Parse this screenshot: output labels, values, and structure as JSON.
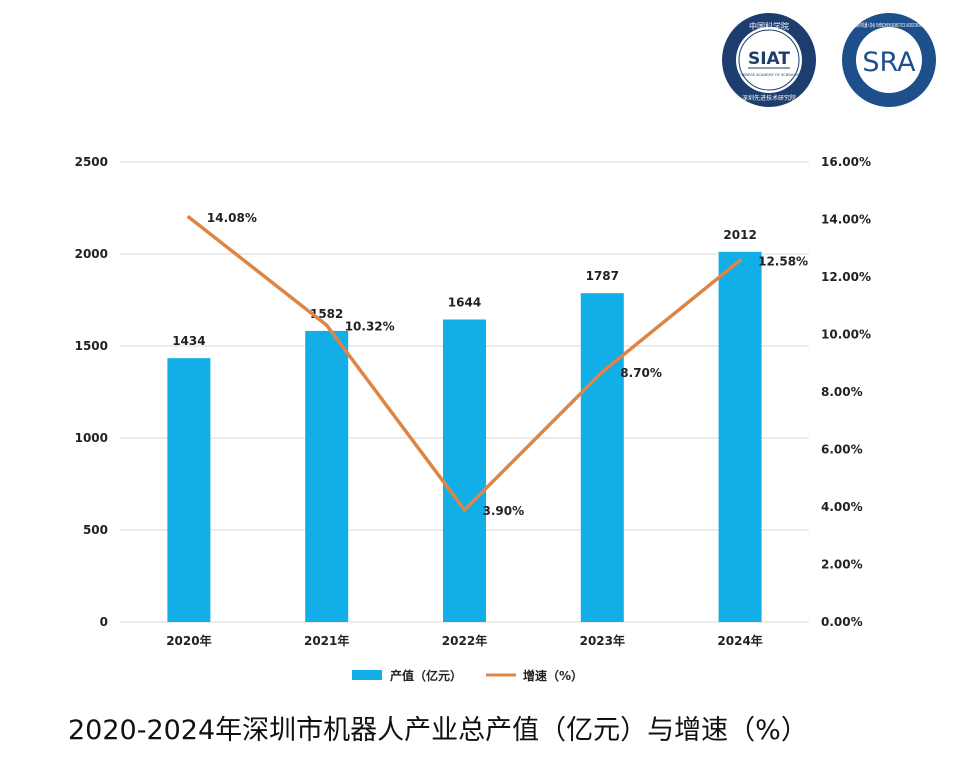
{
  "logos": {
    "siat": {
      "text": "SIAT",
      "ring_top": "中国科学院",
      "sub": "CHINESE ACADEMY OF SCIENCES",
      "ring_bottom": "深圳先进技术研究院"
    },
    "sra": {
      "text": "SRA",
      "ring": "深圳市机器人协会 SHENZHEN ROBOTICS ASSOCIATION"
    }
  },
  "chart_data": {
    "type": "bar+line",
    "categories": [
      "2020年",
      "2021年",
      "2022年",
      "2023年",
      "2024年"
    ],
    "series": [
      {
        "name": "产值（亿元）",
        "type": "bar",
        "axis": "left",
        "values": [
          1434,
          1582,
          1644,
          1787,
          2012
        ],
        "labels": [
          "1434",
          "1582",
          "1644",
          "1787",
          "2012"
        ]
      },
      {
        "name": "增速（%）",
        "type": "line",
        "axis": "right",
        "values": [
          14.08,
          10.32,
          3.9,
          8.7,
          12.58
        ],
        "labels": [
          "14.08%",
          "10.32%",
          "3.90%",
          "8.70%",
          "12.58%"
        ]
      }
    ],
    "y_left": {
      "ylim": [
        0,
        2500
      ],
      "ticks": [
        "0",
        "500",
        "1000",
        "1500",
        "2000",
        "2500"
      ]
    },
    "y_right": {
      "ylim": [
        0,
        16
      ],
      "ticks": [
        "0.00%",
        "2.00%",
        "4.00%",
        "6.00%",
        "8.00%",
        "10.00%",
        "12.00%",
        "14.00%",
        "16.00%"
      ]
    },
    "grid": true,
    "legend": "bottom",
    "colors": {
      "bar": "#12aee8",
      "line": "#de8546",
      "grid": "#d9d9d9"
    },
    "title": "2020-2024年深圳市机器人产业总产值（亿元）与增速（%）"
  }
}
